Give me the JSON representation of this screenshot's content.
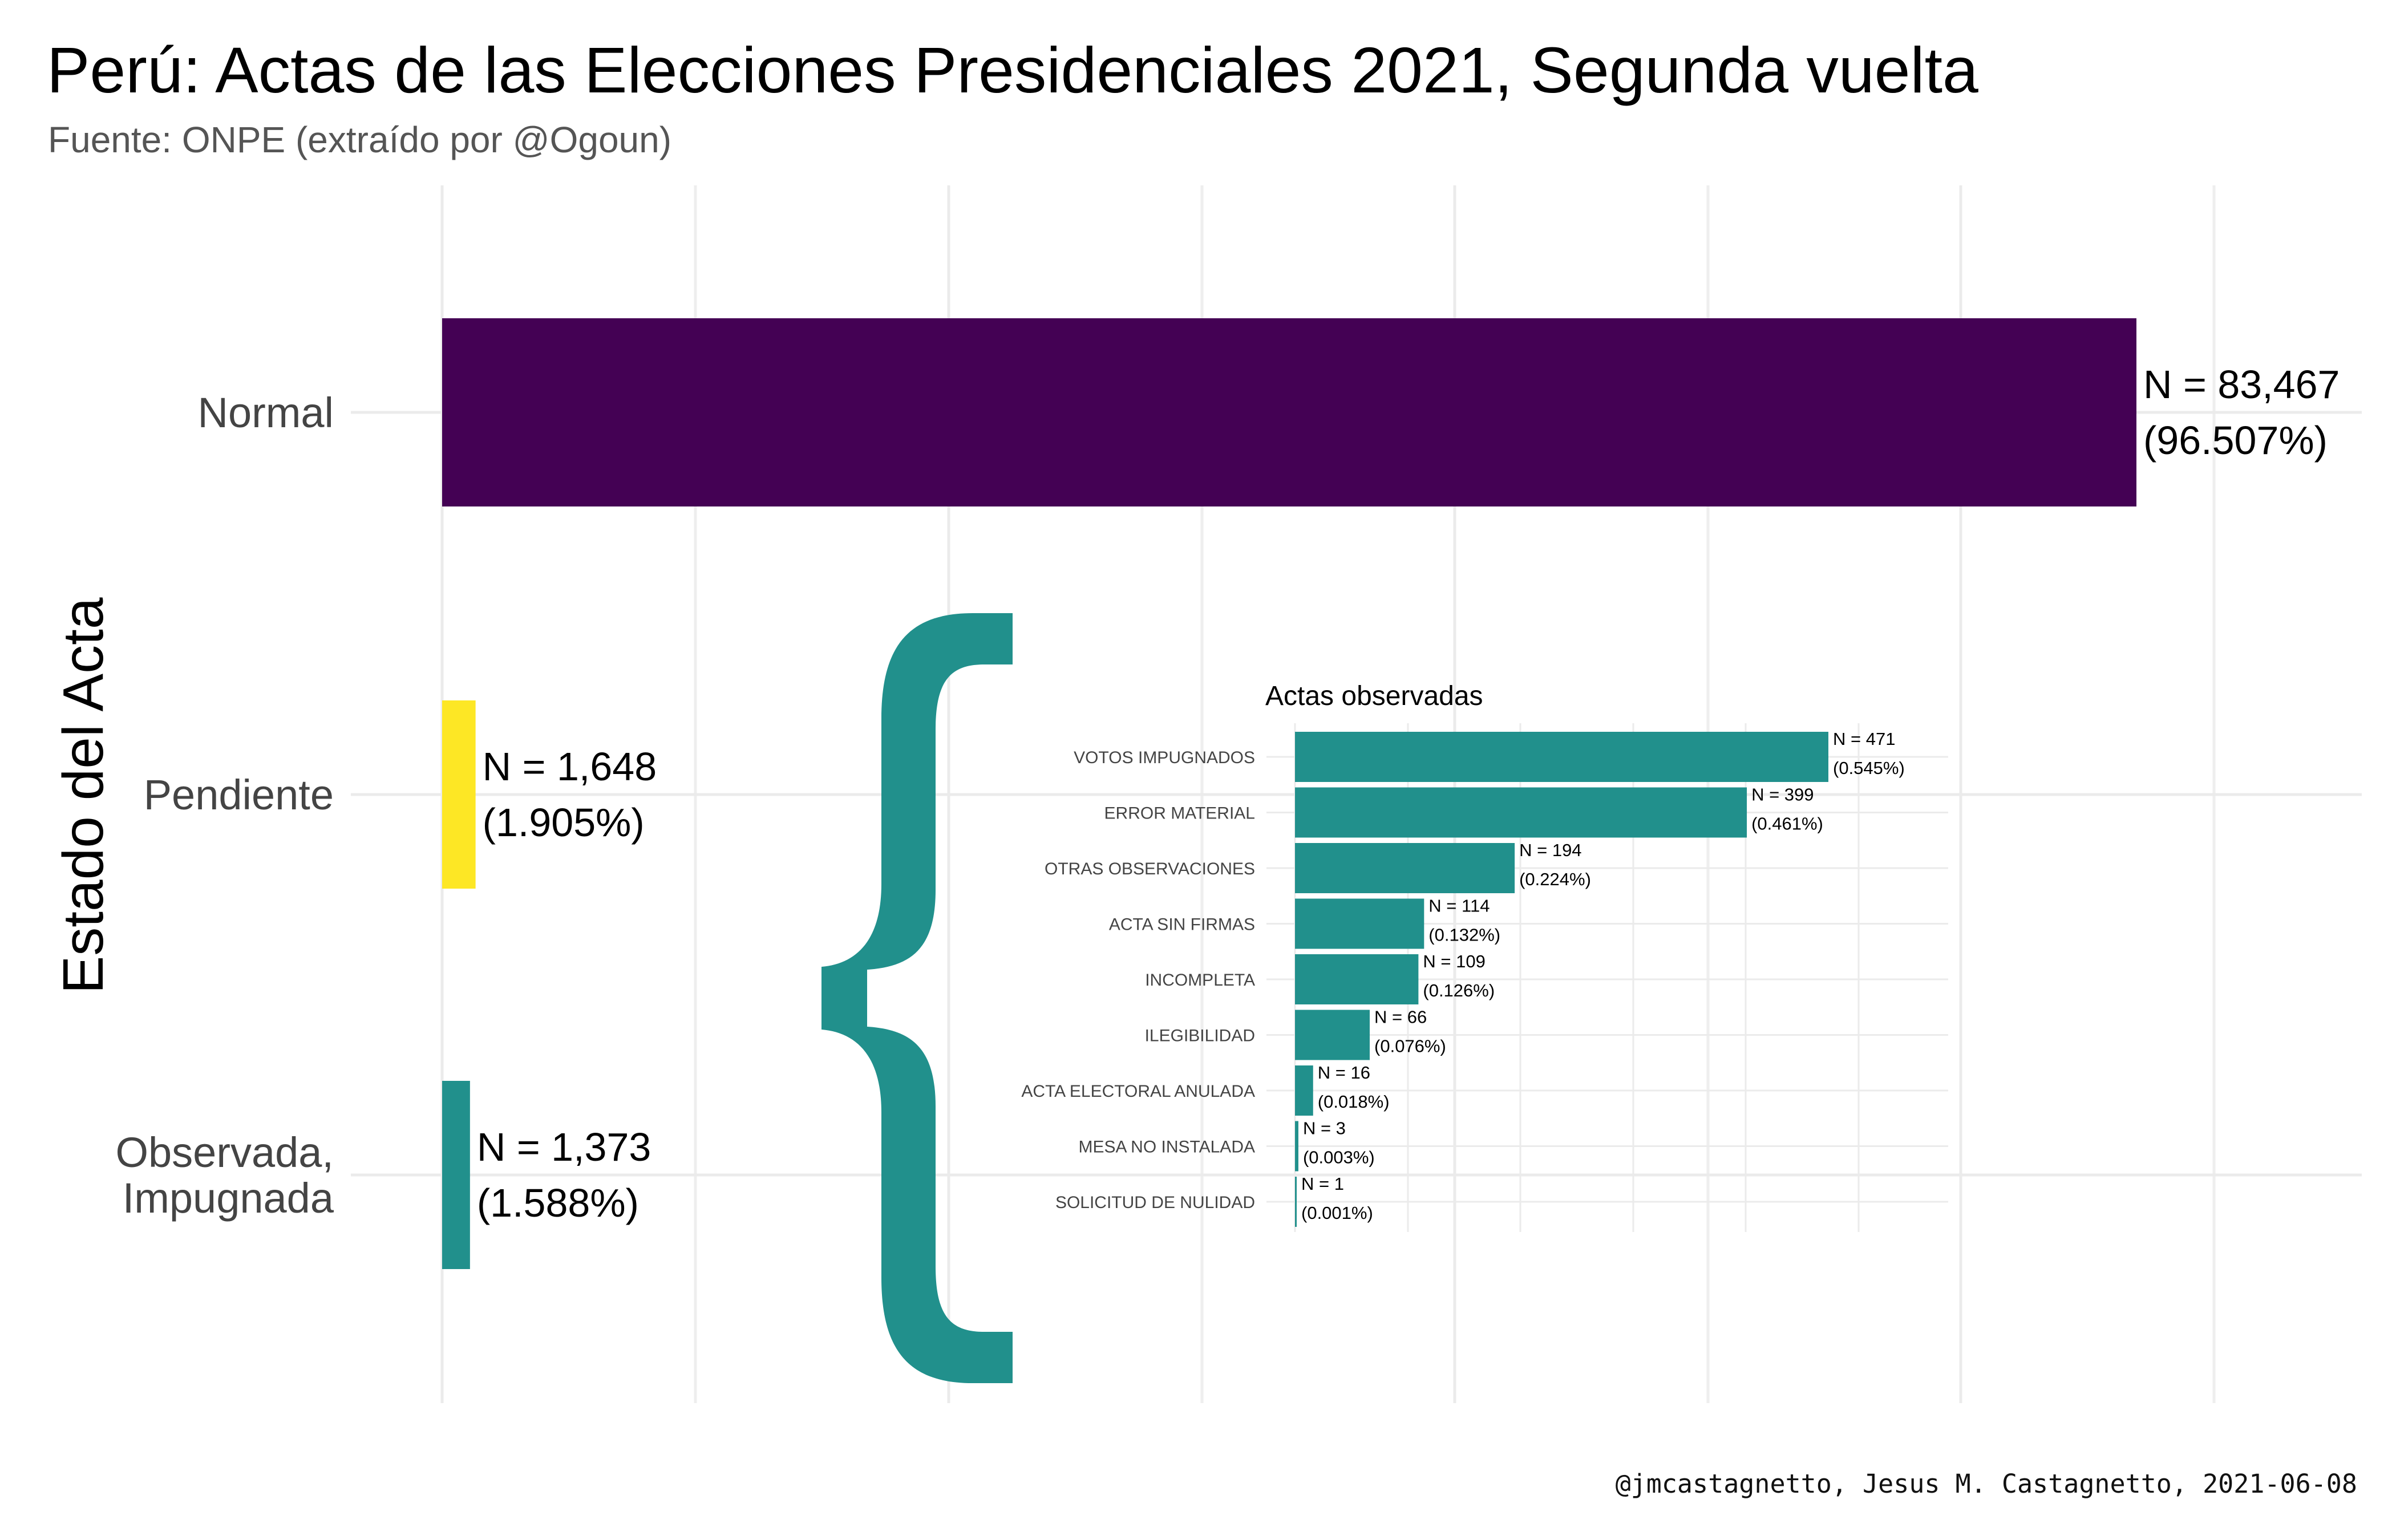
{
  "title": "Perú: Actas de las Elecciones Presidenciales 2021, Segunda vuelta",
  "subtitle": "Fuente: ONPE (extraído por @Ogoun)",
  "caption": "@jmcastagnetto, Jesus M. Castagnetto, 2021-06-08",
  "chart_data": [
    {
      "type": "bar",
      "orientation": "horizontal",
      "ylabel": "Estado del Acta",
      "xlabel": "",
      "grid": true,
      "categories": [
        "Normal",
        "Pendiente",
        "Observada,\nImpugnada"
      ],
      "values": [
        83467,
        1648,
        1373
      ],
      "labels": [
        [
          "N = 83,467",
          "(96.507%)"
        ],
        [
          "N = 1,648",
          "(1.905%)"
        ],
        [
          "N = 1,373",
          "(1.588%)"
        ]
      ],
      "colors": [
        "#440154",
        "#fde725",
        "#21908c"
      ]
    },
    {
      "type": "bar",
      "orientation": "horizontal",
      "title": "Actas observadas",
      "grid": true,
      "color": "#21908c",
      "categories": [
        "VOTOS IMPUGNADOS",
        "ERROR MATERIAL",
        "OTRAS OBSERVACIONES",
        "ACTA SIN FIRMAS",
        "INCOMPLETA",
        "ILEGIBILIDAD",
        "ACTA ELECTORAL ANULADA",
        "MESA NO INSTALADA",
        "SOLICITUD DE NULIDAD"
      ],
      "values": [
        471,
        399,
        194,
        114,
        109,
        66,
        16,
        3,
        1
      ],
      "labels": [
        [
          "N = 471",
          "(0.545%)"
        ],
        [
          "N = 399",
          "(0.461%)"
        ],
        [
          "N = 194",
          "(0.224%)"
        ],
        [
          "N = 114",
          "(0.132%)"
        ],
        [
          "N = 109",
          "(0.126%)"
        ],
        [
          "N = 66",
          "(0.076%)"
        ],
        [
          "N = 16",
          "(0.018%)"
        ],
        [
          "N = 3",
          "(0.003%)"
        ],
        [
          "N = 1",
          "(0.001%)"
        ]
      ]
    }
  ]
}
